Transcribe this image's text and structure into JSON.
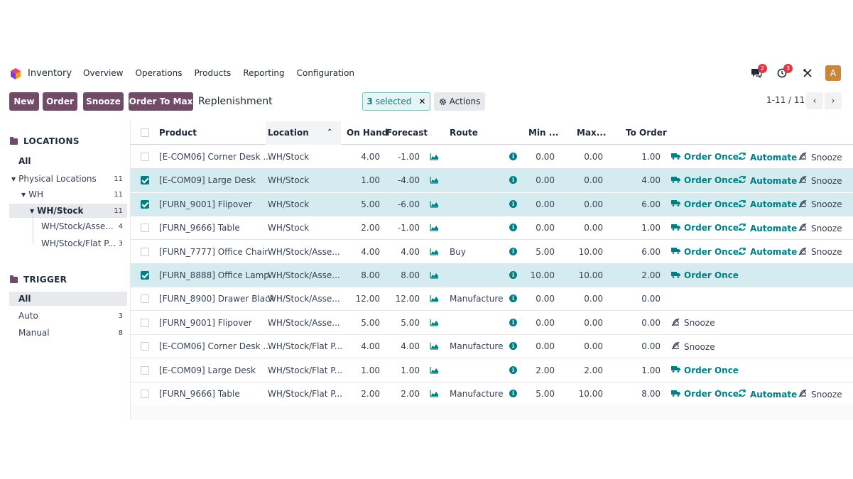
{
  "navbar": {
    "app_name": "Inventory",
    "menu": [
      "Overview",
      "Operations",
      "Products",
      "Reporting",
      "Configuration"
    ],
    "messages_badge": "2",
    "activity_badge": "3",
    "avatar_letter": "A"
  },
  "control_panel": {
    "buttons": {
      "new": "New",
      "order": "Order",
      "snooze": "Snooze",
      "order_to_max": "Order To Max"
    },
    "title": "Replenishment",
    "selected_count": "3",
    "selected_label": "selected",
    "actions_label": "Actions",
    "pager": "1-11 / 11"
  },
  "sidebar": {
    "locations_title": "LOCATIONS",
    "locations": [
      {
        "label": "All",
        "count": ""
      },
      {
        "label": "Physical Locations",
        "count": "11"
      },
      {
        "label": "WH",
        "count": "11"
      },
      {
        "label": "WH/Stock",
        "count": "11"
      },
      {
        "label": "WH/Stock/Asse...",
        "count": "4"
      },
      {
        "label": "WH/Stock/Flat P...",
        "count": "3"
      }
    ],
    "trigger_title": "TRIGGER",
    "triggers": [
      {
        "label": "All",
        "count": ""
      },
      {
        "label": "Auto",
        "count": "3"
      },
      {
        "label": "Manual",
        "count": "8"
      }
    ]
  },
  "table": {
    "headers": {
      "product": "Product",
      "location": "Location",
      "on_hand": "On Hand",
      "forecast": "Forecast",
      "route": "Route",
      "min": "Min ...",
      "max": "Max...",
      "to_order": "To Order"
    },
    "actions": {
      "order_once": "Order Once",
      "automate": "Automate",
      "snooze": "Snooze"
    },
    "rows": [
      {
        "selected": false,
        "product": "[E-COM06] Corner Desk ...",
        "location": "WH/Stock",
        "on_hand": "4.00",
        "forecast": "-1.00",
        "route": "",
        "min": "0.00",
        "max": "0.00",
        "to_order": "1.00",
        "order_once": true,
        "automate": true,
        "snooze": true
      },
      {
        "selected": true,
        "product": "[E-COM09] Large Desk",
        "location": "WH/Stock",
        "on_hand": "1.00",
        "forecast": "-4.00",
        "route": "",
        "min": "0.00",
        "max": "0.00",
        "to_order": "4.00",
        "order_once": true,
        "automate": true,
        "snooze": true
      },
      {
        "selected": true,
        "product": "[FURN_9001] Flipover",
        "location": "WH/Stock",
        "on_hand": "5.00",
        "forecast": "-6.00",
        "route": "",
        "min": "0.00",
        "max": "0.00",
        "to_order": "6.00",
        "order_once": true,
        "automate": true,
        "snooze": true
      },
      {
        "selected": false,
        "product": "[FURN_9666] Table",
        "location": "WH/Stock",
        "on_hand": "2.00",
        "forecast": "-1.00",
        "route": "",
        "min": "0.00",
        "max": "0.00",
        "to_order": "1.00",
        "order_once": true,
        "automate": true,
        "snooze": true
      },
      {
        "selected": false,
        "product": "[FURN_7777] Office Chair",
        "location": "WH/Stock/Asse...",
        "on_hand": "4.00",
        "forecast": "4.00",
        "route": "Buy",
        "min": "5.00",
        "max": "10.00",
        "to_order": "6.00",
        "order_once": true,
        "automate": true,
        "snooze": true
      },
      {
        "selected": true,
        "product": "[FURN_8888] Office Lamp",
        "location": "WH/Stock/Asse...",
        "on_hand": "8.00",
        "forecast": "8.00",
        "route": "",
        "min": "10.00",
        "max": "10.00",
        "to_order": "2.00",
        "order_once": true,
        "automate": false,
        "snooze": false
      },
      {
        "selected": false,
        "product": "[FURN_8900] Drawer Black",
        "location": "WH/Stock/Asse...",
        "on_hand": "12.00",
        "forecast": "12.00",
        "route": "Manufacture",
        "min": "0.00",
        "max": "0.00",
        "to_order": "0.00",
        "order_once": false,
        "automate": false,
        "snooze": false
      },
      {
        "selected": false,
        "product": "[FURN_9001] Flipover",
        "location": "WH/Stock/Asse...",
        "on_hand": "5.00",
        "forecast": "5.00",
        "route": "",
        "min": "0.00",
        "max": "0.00",
        "to_order": "0.00",
        "order_once": false,
        "automate": false,
        "snooze": true
      },
      {
        "selected": false,
        "product": "[E-COM06] Corner Desk ...",
        "location": "WH/Stock/Flat P...",
        "on_hand": "4.00",
        "forecast": "4.00",
        "route": "Manufacture",
        "min": "0.00",
        "max": "0.00",
        "to_order": "0.00",
        "order_once": false,
        "automate": false,
        "snooze": true
      },
      {
        "selected": false,
        "product": "[E-COM09] Large Desk",
        "location": "WH/Stock/Flat P...",
        "on_hand": "1.00",
        "forecast": "1.00",
        "route": "",
        "min": "2.00",
        "max": "2.00",
        "to_order": "1.00",
        "order_once": true,
        "automate": false,
        "snooze": false
      },
      {
        "selected": false,
        "product": "[FURN_9666] Table",
        "location": "WH/Stock/Flat P...",
        "on_hand": "2.00",
        "forecast": "2.00",
        "route": "Manufacture",
        "min": "5.00",
        "max": "10.00",
        "to_order": "8.00",
        "order_once": true,
        "automate": true,
        "snooze": true
      }
    ]
  }
}
